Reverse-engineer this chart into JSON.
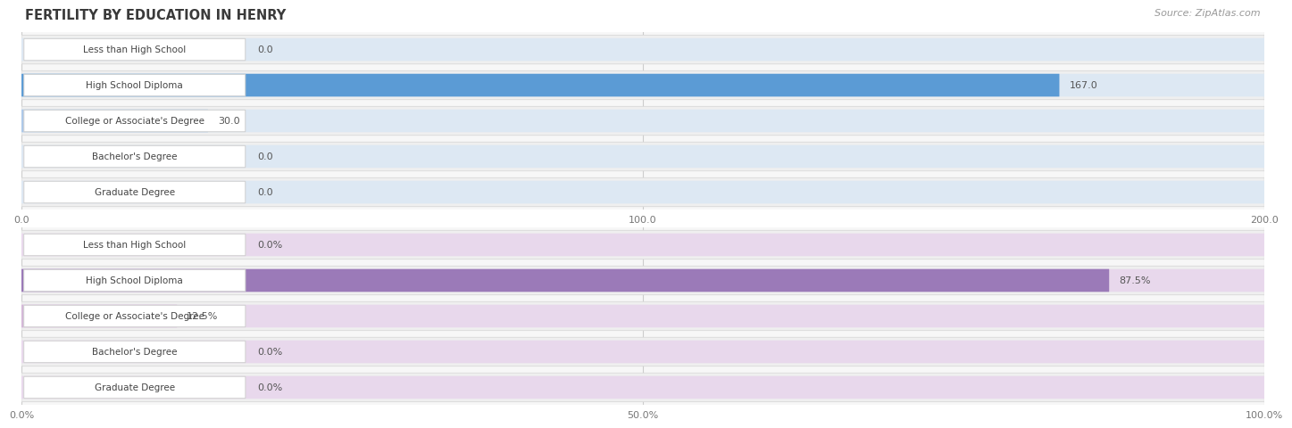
{
  "title": "FERTILITY BY EDUCATION IN HENRY",
  "source": "Source: ZipAtlas.com",
  "chart1": {
    "categories": [
      "Less than High School",
      "High School Diploma",
      "College or Associate's Degree",
      "Bachelor's Degree",
      "Graduate Degree"
    ],
    "values": [
      0.0,
      167.0,
      30.0,
      0.0,
      0.0
    ],
    "xlim": [
      0,
      200.0
    ],
    "xticks": [
      0.0,
      100.0,
      200.0
    ],
    "xticklabels": [
      "0.0",
      "100.0",
      "200.0"
    ],
    "bar_color_light": "#adc8e8",
    "bar_color_strong": "#5b9bd5",
    "bar_bg_color": "#dde8f3"
  },
  "chart2": {
    "categories": [
      "Less than High School",
      "High School Diploma",
      "College or Associate's Degree",
      "Bachelor's Degree",
      "Graduate Degree"
    ],
    "values": [
      0.0,
      87.5,
      12.5,
      0.0,
      0.0
    ],
    "xlim": [
      0,
      100.0
    ],
    "xticks": [
      0.0,
      50.0,
      100.0
    ],
    "xticklabels": [
      "0.0%",
      "50.0%",
      "100.0%"
    ],
    "bar_color_light": "#d4b8d8",
    "bar_color_strong": "#9b7ab8",
    "bar_bg_color": "#e8d8ec"
  },
  "row_bg_color": "#efefef",
  "row_border_color": "#d8d8d8",
  "label_bg": "#ffffff",
  "label_border": "#d0d0d0",
  "label_color": "#444444",
  "value_color": "#555555",
  "title_color": "#3a3a3a",
  "source_color": "#999999",
  "grid_color": "#cccccc"
}
